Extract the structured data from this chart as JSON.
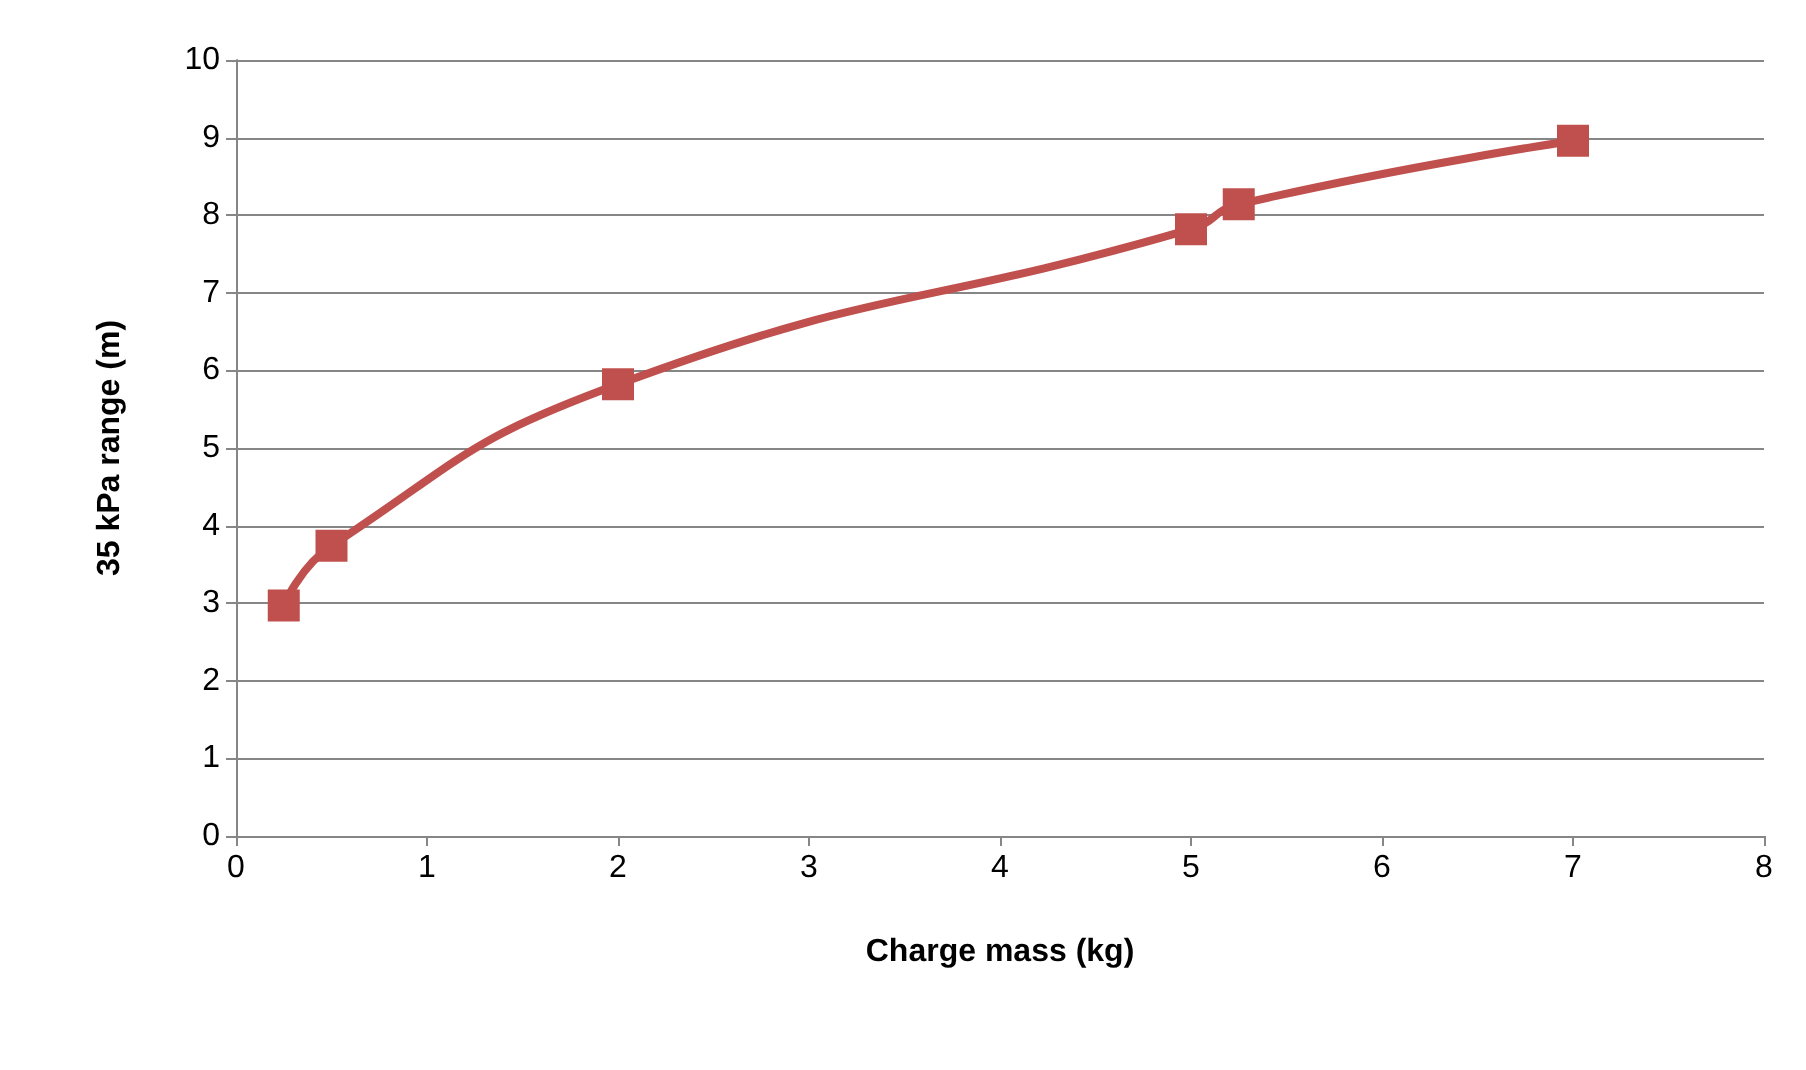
{
  "chart_data": {
    "type": "line",
    "xlabel": "Charge mass (kg)",
    "ylabel": "35 kPa range (m)",
    "x": [
      0.25,
      0.5,
      2,
      5,
      5.25,
      7
    ],
    "series": [
      {
        "color": "#c0504d",
        "values": [
          2.97,
          3.74,
          5.82,
          7.82,
          8.14,
          8.96
        ]
      }
    ],
    "xlim": [
      0,
      8
    ],
    "xticks": [
      0,
      1,
      2,
      3,
      4,
      5,
      6,
      7,
      8
    ],
    "ylim": [
      0,
      10
    ],
    "yticks": [
      0,
      1,
      2,
      3,
      4,
      5,
      6,
      7,
      8,
      9,
      10
    ],
    "grid": "y",
    "marker": "square",
    "line_style": "solid"
  }
}
